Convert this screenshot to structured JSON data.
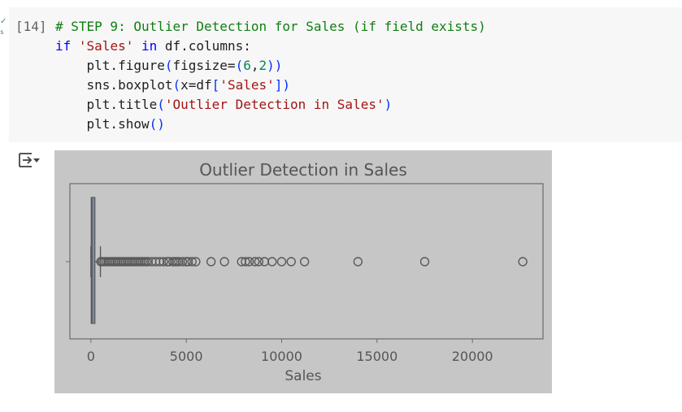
{
  "cell": {
    "execution_count": "[14]",
    "lines": [
      [
        {
          "t": "# STEP 9: Outlier Detection for Sales (if field exists)",
          "c": "c-comment"
        }
      ],
      [
        {
          "t": "if ",
          "c": "c-kw"
        },
        {
          "t": "'Sales'",
          "c": "c-str"
        },
        {
          "t": " ",
          "c": ""
        },
        {
          "t": "in",
          "c": "c-kw"
        },
        {
          "t": " df.columns:",
          "c": ""
        }
      ],
      [
        {
          "t": "    plt.figure",
          "c": ""
        },
        {
          "t": "(",
          "c": "c-paren"
        },
        {
          "t": "figsize=",
          "c": ""
        },
        {
          "t": "(",
          "c": "c-paren"
        },
        {
          "t": "6",
          "c": "c-num"
        },
        {
          "t": ",",
          "c": ""
        },
        {
          "t": "2",
          "c": "c-num"
        },
        {
          "t": "))",
          "c": "c-paren"
        }
      ],
      [
        {
          "t": "    sns.boxplot",
          "c": ""
        },
        {
          "t": "(",
          "c": "c-paren"
        },
        {
          "t": "x=df",
          "c": ""
        },
        {
          "t": "[",
          "c": "c-paren"
        },
        {
          "t": "'Sales'",
          "c": "c-str"
        },
        {
          "t": "])",
          "c": "c-paren"
        }
      ],
      [
        {
          "t": "    plt.title",
          "c": ""
        },
        {
          "t": "(",
          "c": "c-paren"
        },
        {
          "t": "'Outlier Detection in Sales'",
          "c": "c-str"
        },
        {
          "t": ")",
          "c": "c-paren"
        }
      ],
      [
        {
          "t": "    plt.show",
          "c": ""
        },
        {
          "t": "()",
          "c": "c-paren"
        }
      ]
    ]
  },
  "output": {
    "icon": "output-toggle-icon"
  },
  "chart_data": {
    "type": "boxplot",
    "title": "Outlier Detection in Sales",
    "xlabel": "Sales",
    "ylabel": "",
    "xlim": [
      -1100,
      23700
    ],
    "xticks": [
      0,
      5000,
      10000,
      15000,
      20000
    ],
    "xtick_labels": [
      "0",
      "5000",
      "10000",
      "15000",
      "20000"
    ],
    "box": {
      "min": 0.4,
      "q1": 17,
      "median": 55,
      "q3": 210,
      "whisker_high": 500
    },
    "outliers": [
      520,
      600,
      700,
      800,
      900,
      1000,
      1100,
      1200,
      1300,
      1400,
      1500,
      1600,
      1700,
      1800,
      1900,
      2000,
      2100,
      2200,
      2300,
      2400,
      2500,
      2600,
      2700,
      2800,
      2900,
      3000,
      3200,
      3400,
      3600,
      3800,
      4000,
      4100,
      4300,
      4400,
      4500,
      4600,
      4800,
      5000,
      5100,
      5300,
      5500,
      6300,
      7000,
      7900,
      8100,
      8300,
      8600,
      8800,
      9100,
      9500,
      10000,
      10500,
      11200,
      14000,
      17500,
      22640
    ],
    "colors": {
      "box": "#7b8ba3",
      "background": "#c6c6c6",
      "line": "#5a5a5a"
    }
  }
}
